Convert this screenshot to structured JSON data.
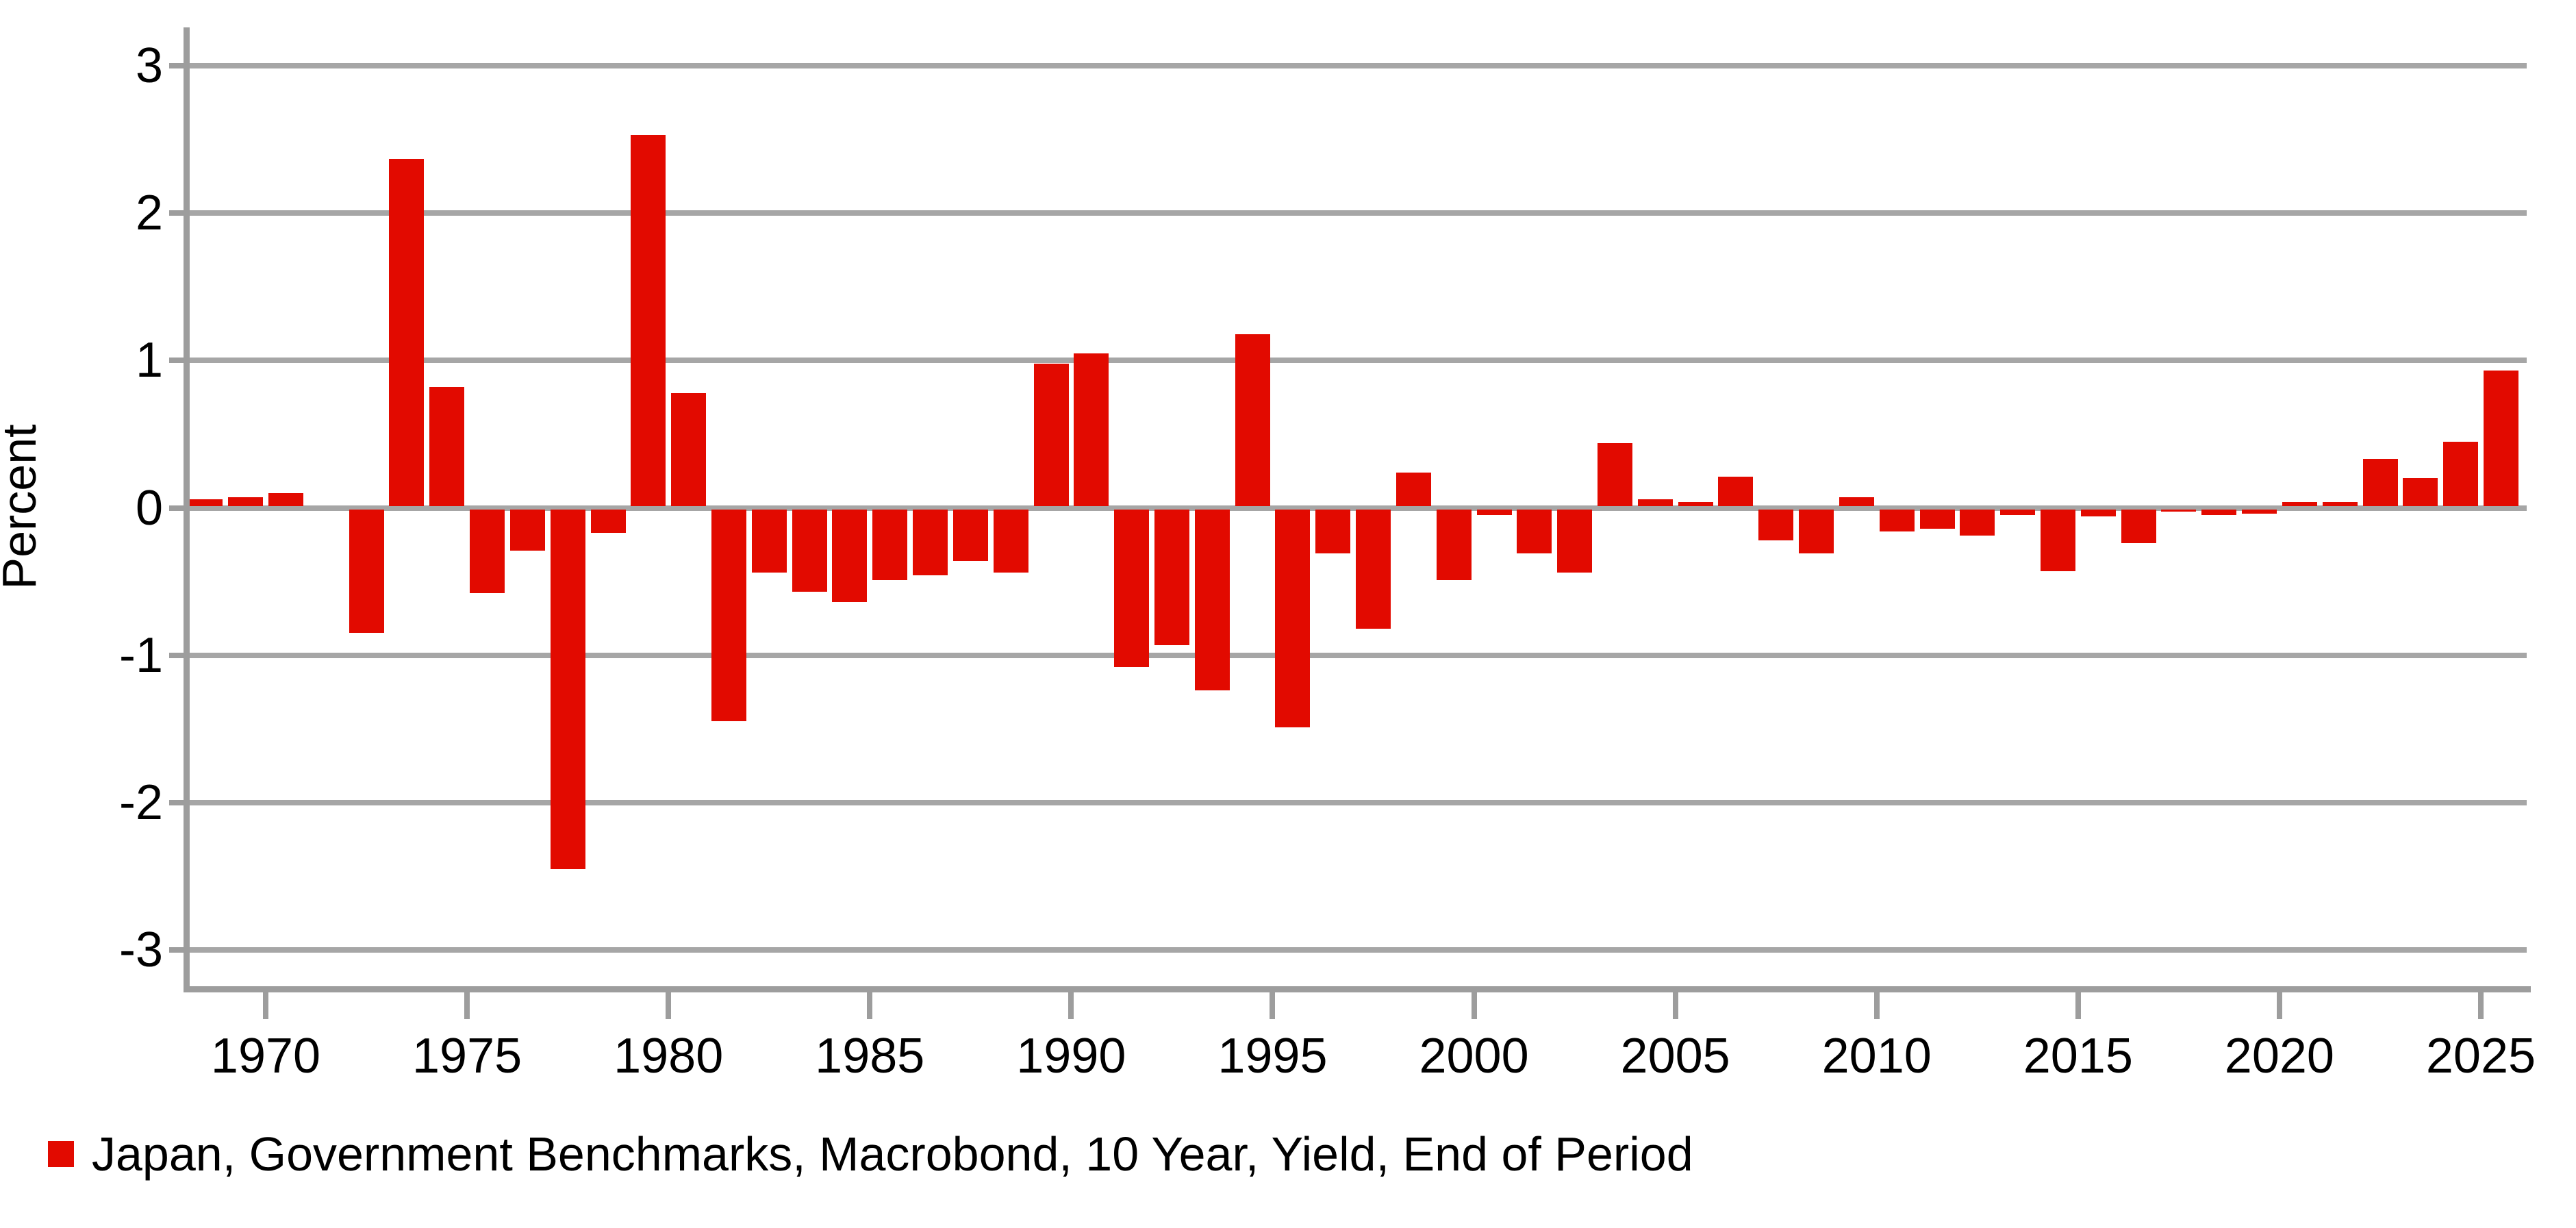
{
  "chart_data": {
    "type": "bar",
    "title": "",
    "ylabel": "Percent",
    "xlabel": "",
    "legend_label": "Japan, Government Benchmarks, Macrobond, 10 Year, Yield, End of Period",
    "legend_position": "bottom-left",
    "grid": "horizontal",
    "ylim": [
      -3.25,
      3.26
    ],
    "xlim": [
      1968.1,
      2026.2
    ],
    "yticks": [
      3,
      2,
      1,
      0,
      -1,
      -2,
      -3
    ],
    "ytick_labels": [
      "3",
      "2",
      "1",
      "0",
      "-1",
      "-2",
      "-3"
    ],
    "xticks": [
      1970,
      1975,
      1980,
      1985,
      1990,
      1995,
      2000,
      2005,
      2010,
      2015,
      2020,
      2025
    ],
    "xtick_labels": [
      "1970",
      "1975",
      "1980",
      "1985",
      "1990",
      "1995",
      "2000",
      "2005",
      "2010",
      "2015",
      "2020",
      "2025"
    ],
    "x": [
      1968,
      1969,
      1970,
      1971,
      1972,
      1973,
      1974,
      1975,
      1976,
      1977,
      1978,
      1979,
      1980,
      1981,
      1982,
      1983,
      1984,
      1985,
      1986,
      1987,
      1988,
      1989,
      1990,
      1991,
      1992,
      1993,
      1994,
      1995,
      1996,
      1997,
      1998,
      1999,
      2000,
      2001,
      2002,
      2003,
      2004,
      2005,
      2006,
      2007,
      2008,
      2009,
      2010,
      2011,
      2012,
      2013,
      2014,
      2015,
      2016,
      2017,
      2018,
      2019,
      2020,
      2021,
      2022,
      2023,
      2024,
      2025
    ],
    "values": [
      0.06,
      0.07,
      0.1,
      0.0,
      -0.85,
      2.37,
      0.82,
      -0.58,
      -0.29,
      -2.45,
      -0.17,
      2.53,
      0.78,
      -1.45,
      -0.44,
      -0.57,
      -0.64,
      -0.49,
      -0.46,
      -0.36,
      -0.44,
      0.98,
      1.05,
      -1.08,
      -0.93,
      -1.24,
      1.18,
      -1.49,
      -0.31,
      -0.82,
      0.24,
      -0.49,
      -0.05,
      -0.31,
      -0.44,
      0.44,
      0.06,
      0.04,
      0.21,
      -0.22,
      -0.31,
      0.07,
      -0.16,
      -0.14,
      -0.19,
      -0.05,
      -0.43,
      -0.06,
      -0.24,
      -0.01,
      -0.05,
      -0.04,
      0.04,
      0.04,
      0.33,
      0.2,
      0.45,
      0.93
    ],
    "bar_color": "#e20a00",
    "gridline_color": "#a6a6a6",
    "axis_color": "#9d9d9d",
    "text_color": "#000000",
    "background_color": "#ffffff"
  }
}
